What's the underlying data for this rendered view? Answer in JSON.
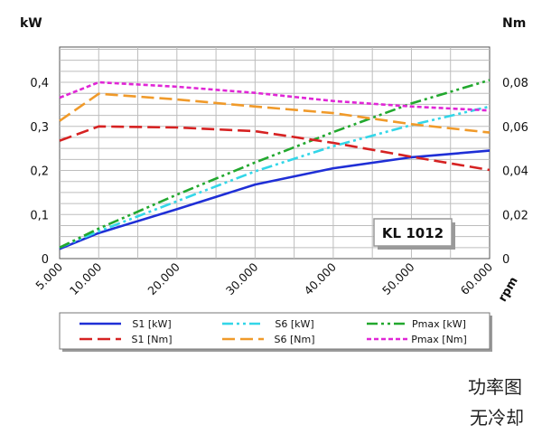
{
  "chart_data": {
    "type": "line",
    "title": "",
    "badge": "KL 1012",
    "y_left_unit": "kW",
    "y_right_unit": "Nm",
    "x_unit": "rpm",
    "x_ticks": [
      "5.000",
      "10.000",
      "20.000",
      "30.000",
      "40.000",
      "50.000",
      "60.000"
    ],
    "x_tick_values": [
      5000,
      10000,
      20000,
      30000,
      40000,
      50000,
      60000
    ],
    "xlim": [
      5000,
      60000
    ],
    "y_left_ticks": [
      "0",
      "0,1",
      "0,2",
      "0,3",
      "0,4"
    ],
    "y_left_lim": [
      0,
      0.48
    ],
    "y_right_ticks": [
      "0",
      "0,02",
      "0,04",
      "0,06",
      "0,08"
    ],
    "y_right_lim": [
      0,
      0.096
    ],
    "grid": true,
    "legend_position": "bottom",
    "series": [
      {
        "name": "S1 [kW]",
        "axis": "left",
        "color": "#1f2fd6",
        "dash": "solid",
        "x": [
          5000,
          10000,
          20000,
          30000,
          40000,
          50000,
          60000
        ],
        "y": [
          0.022,
          0.058,
          0.112,
          0.168,
          0.205,
          0.23,
          0.245
        ]
      },
      {
        "name": "S6 [kW]",
        "axis": "left",
        "color": "#33d6e8",
        "dash": "dashdotdot",
        "x": [
          5000,
          10000,
          20000,
          30000,
          40000,
          50000,
          60000
        ],
        "y": [
          0.025,
          0.062,
          0.13,
          0.198,
          0.255,
          0.303,
          0.345
        ]
      },
      {
        "name": "Pmax [kW]",
        "axis": "left",
        "color": "#22a82e",
        "dash": "dashdotdot",
        "x": [
          5000,
          10000,
          20000,
          30000,
          40000,
          50000,
          60000
        ],
        "y": [
          0.025,
          0.068,
          0.145,
          0.218,
          0.287,
          0.352,
          0.405
        ]
      },
      {
        "name": "S1 [Nm]",
        "axis": "right",
        "color": "#d62222",
        "dash": "dash",
        "x": [
          5000,
          10000,
          20000,
          30000,
          40000,
          50000,
          60000
        ],
        "y": [
          0.0535,
          0.06,
          0.0595,
          0.0578,
          0.0525,
          0.0462,
          0.0402
        ]
      },
      {
        "name": "S6 [Nm]",
        "axis": "right",
        "color": "#f09a2a",
        "dash": "dash",
        "x": [
          5000,
          10000,
          20000,
          30000,
          40000,
          50000,
          60000
        ],
        "y": [
          0.0625,
          0.0748,
          0.0722,
          0.069,
          0.066,
          0.061,
          0.0572
        ]
      },
      {
        "name": "Pmax [Nm]",
        "axis": "right",
        "color": "#e026d6",
        "dash": "dot",
        "x": [
          5000,
          10000,
          20000,
          30000,
          40000,
          50000,
          60000
        ],
        "y": [
          0.073,
          0.08,
          0.078,
          0.0752,
          0.0715,
          0.069,
          0.0672
        ]
      }
    ]
  },
  "caption": {
    "line1": "功率图",
    "line2": "无冷却"
  }
}
